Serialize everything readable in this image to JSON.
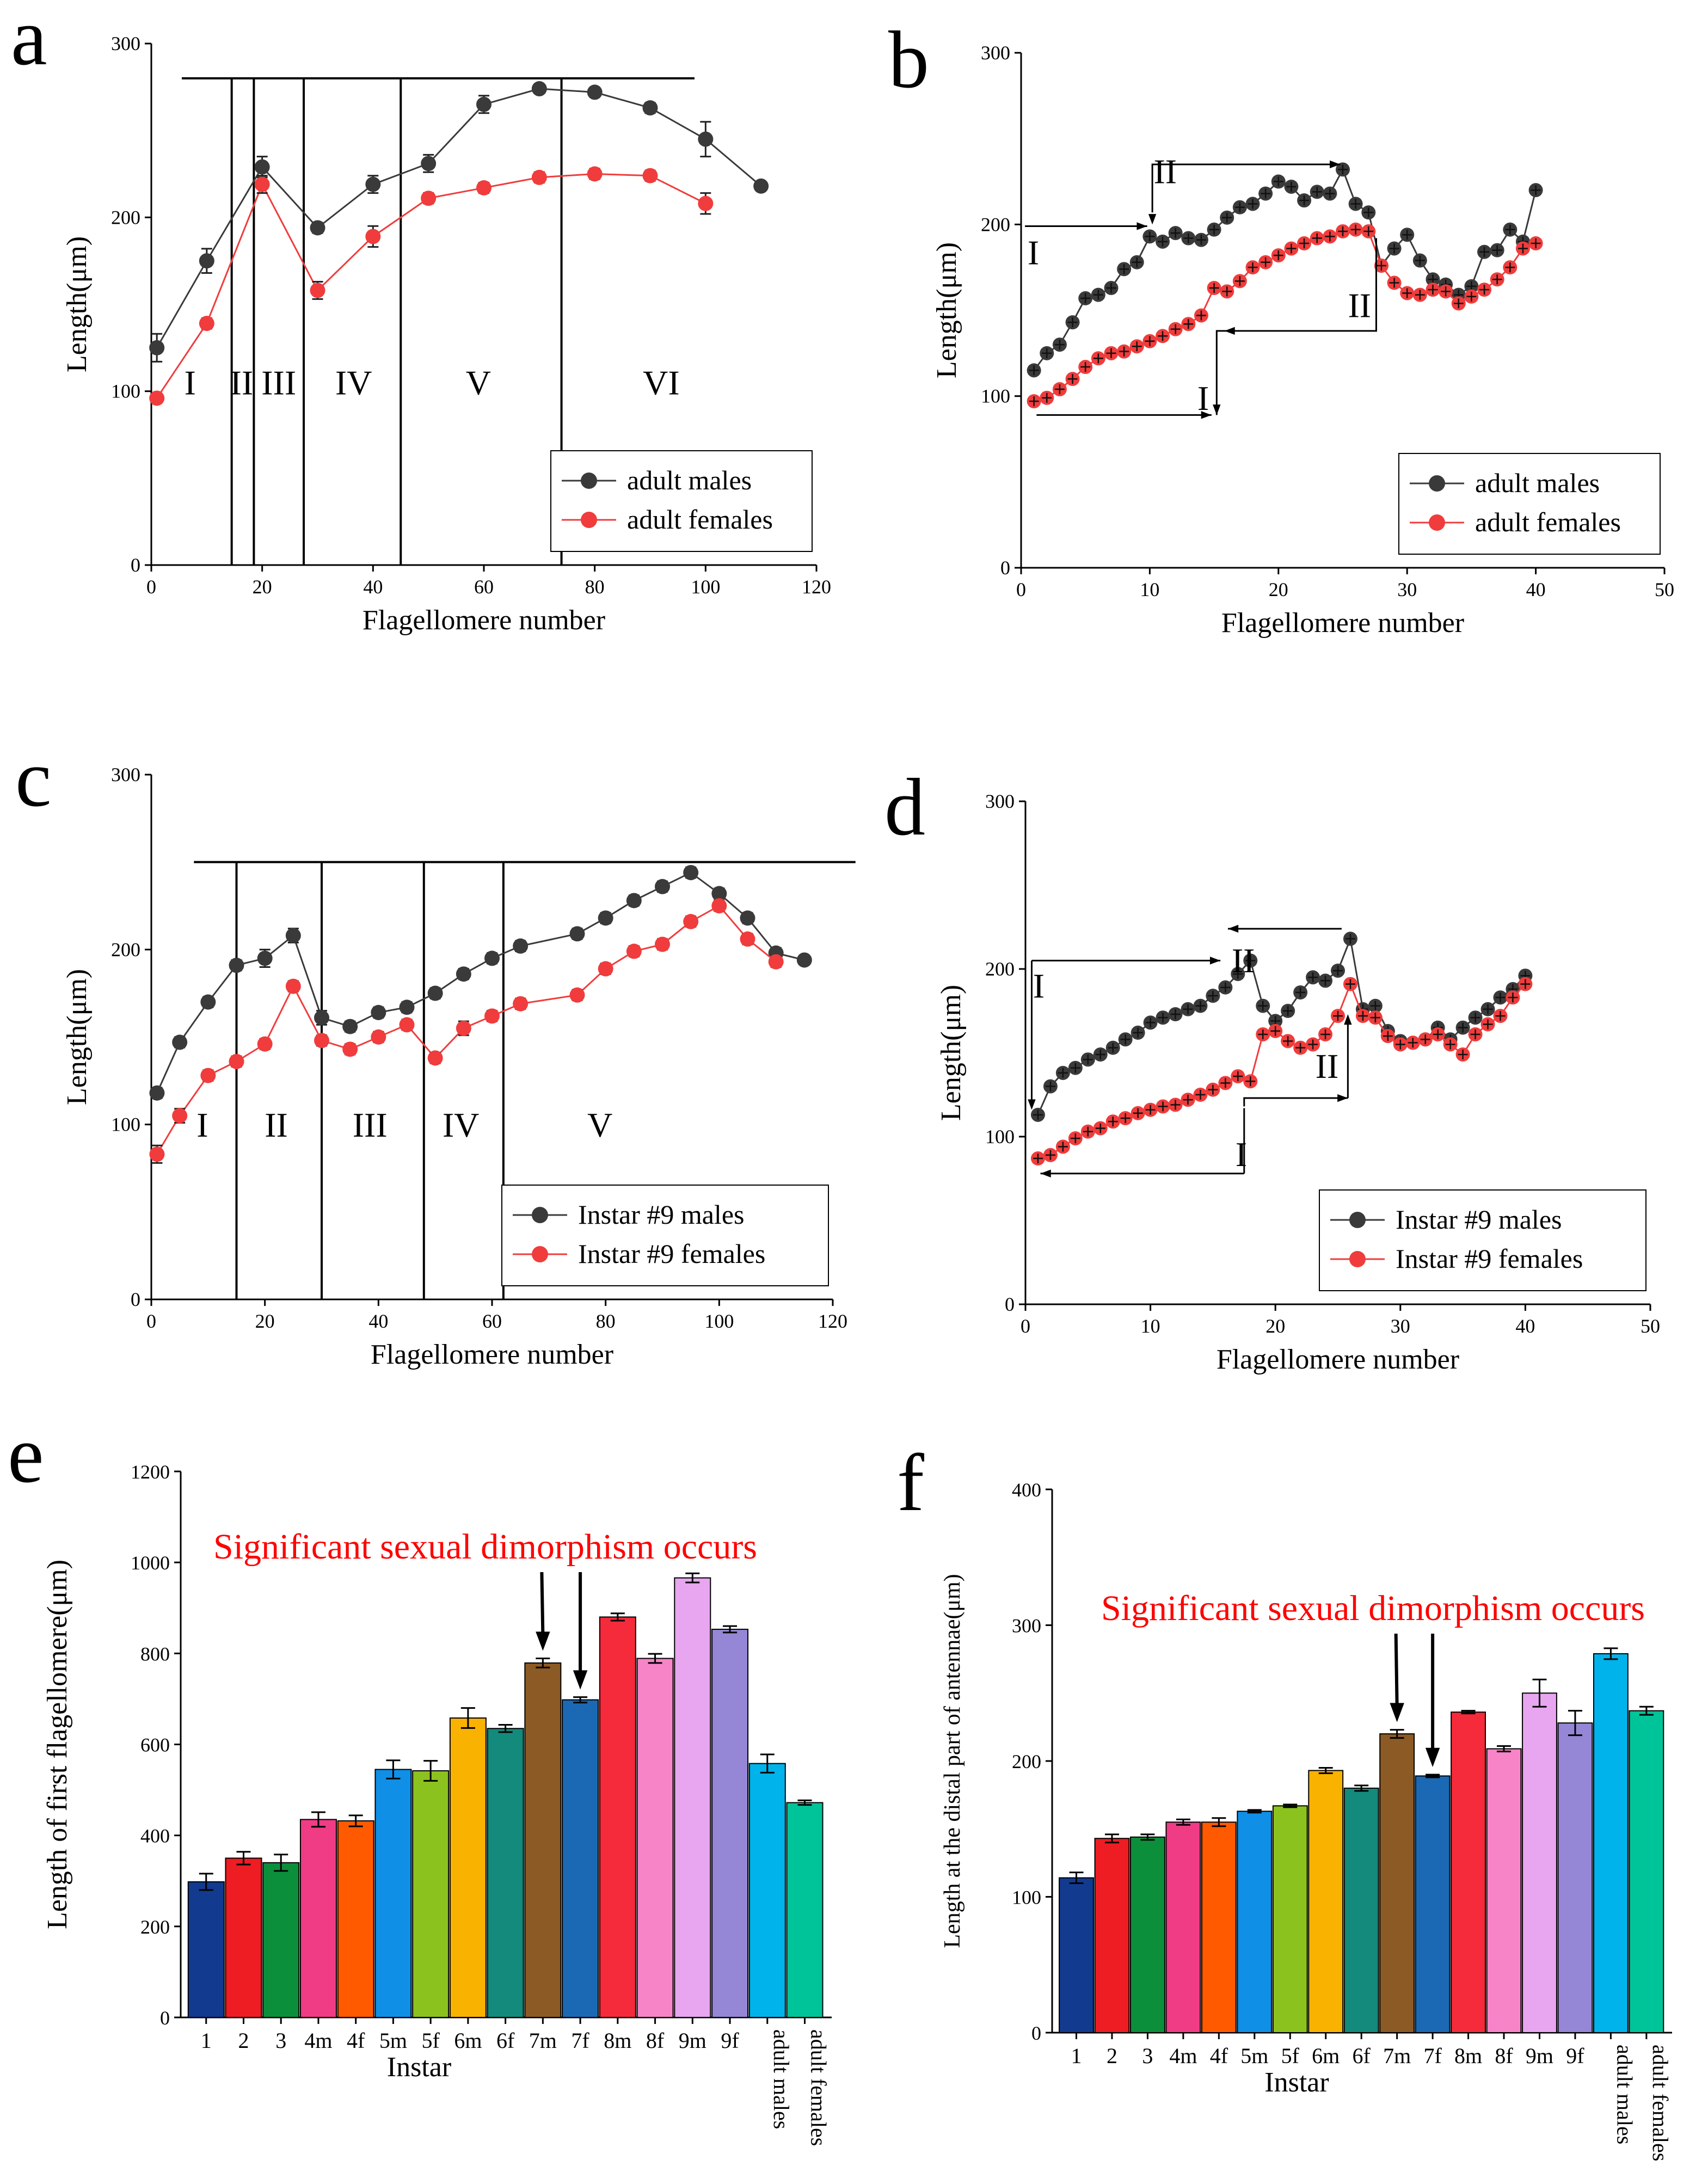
{
  "colors": {
    "male": "#3a3a3a",
    "female": "#f03c3c",
    "annotation": "#ff0000"
  },
  "chart_data": [
    {
      "panel": "a",
      "type": "line",
      "xlabel": "Flagellomere number",
      "ylabel": "Length(μm)",
      "xlim": [
        0,
        120
      ],
      "ylim": [
        0,
        300
      ],
      "xticks": [
        0,
        20,
        40,
        60,
        80,
        100,
        120
      ],
      "yticks": [
        0,
        100,
        200,
        300
      ],
      "legend": "bottom-right",
      "series": [
        {
          "name": "adult males",
          "color": "#3a3a3a",
          "x": [
            1,
            10,
            20,
            30,
            40,
            50,
            60,
            70,
            80,
            90,
            100,
            110
          ],
          "values": [
            125,
            175,
            229,
            194,
            219,
            231,
            265,
            274,
            272,
            263,
            245,
            218
          ],
          "errors": [
            8,
            7,
            6,
            3,
            5,
            5,
            5,
            2,
            2,
            3,
            10,
            2
          ]
        },
        {
          "name": "adult females",
          "color": "#f03c3c",
          "x": [
            1,
            10,
            20,
            30,
            40,
            50,
            60,
            70,
            80,
            90,
            100
          ],
          "values": [
            96,
            139,
            219,
            158,
            189,
            211,
            217,
            223,
            225,
            224,
            208
          ],
          "errors": [
            2,
            3,
            5,
            5,
            6,
            3,
            3,
            3,
            3,
            3,
            6
          ]
        }
      ],
      "bracket_y": 280,
      "dividers_x": [
        14.5,
        18.5,
        27.5,
        45,
        74
      ],
      "regions": [
        {
          "label": "I",
          "x": 7,
          "y": 95
        },
        {
          "label": "II",
          "x": 16.3,
          "y": 95
        },
        {
          "label": "III",
          "x": 23,
          "y": 95
        },
        {
          "label": "IV",
          "x": 36.5,
          "y": 95
        },
        {
          "label": "V",
          "x": 59,
          "y": 95
        },
        {
          "label": "VI",
          "x": 92,
          "y": 95
        }
      ]
    },
    {
      "panel": "b",
      "type": "line",
      "xlabel": "Flagellomere number",
      "ylabel": "Length(μm)",
      "xlim": [
        0,
        50
      ],
      "ylim": [
        0,
        300
      ],
      "xticks": [
        0,
        10,
        20,
        30,
        40,
        50
      ],
      "yticks": [
        0,
        100,
        200,
        300
      ],
      "legend": "bottom-right",
      "series": [
        {
          "name": "adult males",
          "color": "#3a3a3a",
          "x": [
            1,
            2,
            3,
            4,
            5,
            6,
            7,
            8,
            9,
            10,
            11,
            12,
            13,
            14,
            15,
            16,
            17,
            18,
            19,
            20,
            21,
            22,
            23,
            24,
            25,
            26,
            27,
            28,
            29,
            30,
            31,
            32,
            33,
            34,
            35,
            36,
            37,
            38,
            39,
            40
          ],
          "values": [
            115,
            125,
            130,
            143,
            157,
            159,
            163,
            174,
            178,
            193,
            190,
            195,
            192,
            191,
            197,
            204,
            210,
            212,
            218,
            225,
            222,
            214,
            219,
            218,
            232,
            212,
            207,
            176,
            186,
            194,
            179,
            168,
            165,
            159,
            164,
            184,
            185,
            197,
            190,
            220
          ]
        },
        {
          "name": "adult females",
          "color": "#f03c3c",
          "x": [
            1,
            2,
            3,
            4,
            5,
            6,
            7,
            8,
            9,
            10,
            11,
            12,
            13,
            14,
            15,
            16,
            17,
            18,
            19,
            20,
            21,
            22,
            23,
            24,
            25,
            26,
            27,
            28,
            29,
            30,
            31,
            32,
            33,
            34,
            35,
            36,
            37,
            38,
            39,
            40
          ],
          "values": [
            97,
            99,
            104,
            110,
            117,
            122,
            125,
            126,
            129,
            132,
            135,
            139,
            142,
            147,
            163,
            161,
            167,
            175,
            178,
            182,
            186,
            189,
            192,
            193,
            196,
            197,
            196,
            176,
            166,
            160,
            159,
            162,
            161,
            154,
            158,
            162,
            168,
            175,
            186,
            189
          ]
        }
      ],
      "annotations": {
        "male_roman": [
          "I",
          "II"
        ],
        "female_roman": [
          "I",
          "II"
        ]
      }
    },
    {
      "panel": "c",
      "type": "line",
      "xlabel": "Flagellomere number",
      "ylabel": "Length(μm)",
      "xlim": [
        0,
        120
      ],
      "ylim": [
        0,
        300
      ],
      "xticks": [
        0,
        20,
        40,
        60,
        80,
        100,
        120
      ],
      "yticks": [
        0,
        100,
        200,
        300
      ],
      "legend": "bottom-right",
      "series": [
        {
          "name": "Instar #9 males",
          "color": "#3a3a3a",
          "x": [
            1,
            5,
            10,
            15,
            20,
            25,
            30,
            35,
            40,
            45,
            50,
            55,
            60,
            65,
            75,
            80,
            85,
            90,
            95,
            100,
            105,
            110,
            115
          ],
          "values": [
            118,
            147,
            170,
            191,
            195,
            208,
            161,
            156,
            164,
            167,
            175,
            186,
            195,
            202,
            209,
            218,
            228,
            236,
            244,
            232,
            218,
            198,
            194
          ],
          "errors": [
            3,
            3,
            3,
            3,
            5,
            4,
            4,
            3,
            3,
            3,
            3,
            3,
            3,
            3,
            3,
            3,
            3,
            3,
            3,
            3,
            3,
            3,
            2
          ]
        },
        {
          "name": "Instar #9 females",
          "color": "#f03c3c",
          "x": [
            1,
            5,
            10,
            15,
            20,
            25,
            30,
            35,
            40,
            45,
            50,
            55,
            60,
            65,
            75,
            80,
            85,
            90,
            95,
            100,
            105,
            110
          ],
          "values": [
            83,
            105,
            128,
            136,
            146,
            179,
            148,
            143,
            150,
            157,
            138,
            155,
            162,
            169,
            174,
            189,
            199,
            203,
            216,
            225,
            206,
            193
          ],
          "errors": [
            5,
            4,
            3,
            3,
            3,
            3,
            3,
            3,
            3,
            3,
            3,
            4,
            3,
            3,
            3,
            3,
            3,
            3,
            3,
            3,
            3,
            3
          ]
        }
      ],
      "bracket_y": 250,
      "dividers_x": [
        15,
        30,
        48,
        62
      ],
      "regions": [
        {
          "label": "I",
          "x": 9,
          "y": 90
        },
        {
          "label": "II",
          "x": 22,
          "y": 90
        },
        {
          "label": "III",
          "x": 38.5,
          "y": 90
        },
        {
          "label": "IV",
          "x": 54.5,
          "y": 90
        },
        {
          "label": "V",
          "x": 79,
          "y": 90
        }
      ]
    },
    {
      "panel": "d",
      "type": "line",
      "xlabel": "Flagellomere number",
      "ylabel": "Length(μm)",
      "xlim": [
        0,
        50
      ],
      "ylim": [
        0,
        300
      ],
      "xticks": [
        0,
        10,
        20,
        30,
        40,
        50
      ],
      "yticks": [
        0,
        100,
        200,
        300
      ],
      "legend": "bottom-right",
      "series": [
        {
          "name": "Instar #9 males",
          "color": "#3a3a3a",
          "x": [
            1,
            2,
            3,
            4,
            5,
            6,
            7,
            8,
            9,
            10,
            11,
            12,
            13,
            14,
            15,
            16,
            17,
            18,
            19,
            20,
            21,
            22,
            23,
            24,
            25,
            26,
            27,
            28,
            29,
            30,
            31,
            32,
            33,
            34,
            35,
            36,
            37,
            38,
            39,
            40
          ],
          "values": [
            113,
            130,
            138,
            141,
            146,
            149,
            153,
            158,
            162,
            168,
            171,
            173,
            176,
            178,
            184,
            189,
            197,
            205,
            178,
            169,
            175,
            186,
            195,
            193,
            199,
            218,
            176,
            178,
            163,
            157,
            156,
            158,
            165,
            158,
            165,
            171,
            176,
            183,
            188,
            196
          ]
        },
        {
          "name": "Instar #9 females",
          "color": "#f03c3c",
          "x": [
            1,
            2,
            3,
            4,
            5,
            6,
            7,
            8,
            9,
            10,
            11,
            12,
            13,
            14,
            15,
            16,
            17,
            18,
            19,
            20,
            21,
            22,
            23,
            24,
            25,
            26,
            27,
            28,
            29,
            30,
            31,
            32,
            33,
            34,
            35,
            36,
            37,
            38,
            39,
            40
          ],
          "values": [
            87,
            89,
            94,
            99,
            103,
            105,
            109,
            111,
            114,
            116,
            118,
            119,
            122,
            125,
            128,
            132,
            136,
            133,
            161,
            163,
            157,
            153,
            155,
            161,
            172,
            191,
            172,
            171,
            160,
            155,
            156,
            158,
            161,
            155,
            149,
            161,
            167,
            172,
            183,
            191
          ]
        }
      ],
      "annotations": {
        "male_roman": [
          "I",
          "II"
        ],
        "female_roman": [
          "I",
          "II"
        ]
      }
    },
    {
      "panel": "e",
      "type": "bar",
      "xlabel": "Instar",
      "ylabel": "Length of first flagellomere(μm)",
      "ylim": [
        0,
        1200
      ],
      "yticks": [
        0,
        200,
        400,
        600,
        800,
        1000,
        1200
      ],
      "categories": [
        "1",
        "2",
        "3",
        "4m",
        "4f",
        "5m",
        "5f",
        "6m",
        "6f",
        "7m",
        "7f",
        "8m",
        "8f",
        "9m",
        "9f",
        "adult males",
        "adult females"
      ],
      "values": [
        298,
        350,
        340,
        435,
        432,
        545,
        542,
        658,
        635,
        779,
        698,
        880,
        789,
        966,
        853,
        558,
        472
      ],
      "errors": [
        18,
        14,
        18,
        16,
        12,
        20,
        22,
        22,
        8,
        10,
        6,
        8,
        10,
        10,
        7,
        20,
        5
      ],
      "bar_colors": [
        "#123a8f",
        "#ee1d23",
        "#0c8f3a",
        "#f03b85",
        "#ff5a00",
        "#0f8fe6",
        "#8cc21e",
        "#f9b200",
        "#138a7c",
        "#8c5a24",
        "#1b69b4",
        "#f52a3a",
        "#f884c8",
        "#e7a6ef",
        "#9586d6",
        "#00b3eb",
        "#00c499"
      ],
      "annotation": "Significant sexual dimorphism occurs",
      "arrow_targets": [
        9,
        10
      ]
    },
    {
      "panel": "f",
      "type": "bar",
      "xlabel": "Instar",
      "ylabel": "Length at the distal part of antennae(μm)",
      "ylim": [
        0,
        400
      ],
      "yticks": [
        0,
        100,
        200,
        300,
        400
      ],
      "categories": [
        "1",
        "2",
        "3",
        "4m",
        "4f",
        "5m",
        "5f",
        "6m",
        "6f",
        "7m",
        "7f",
        "8m",
        "8f",
        "9m",
        "9f",
        "adult males",
        "adult females"
      ],
      "values": [
        114,
        143,
        144,
        155,
        155,
        163,
        167,
        193,
        180,
        220,
        189,
        236,
        209,
        250,
        228,
        279,
        237
      ],
      "errors": [
        4,
        3,
        2,
        2,
        3,
        1,
        1,
        2,
        2,
        3,
        1,
        1,
        2,
        10,
        9,
        4,
        3
      ],
      "bar_colors": [
        "#123a8f",
        "#ee1d23",
        "#0c8f3a",
        "#f03b85",
        "#ff5a00",
        "#0f8fe6",
        "#8cc21e",
        "#f9b200",
        "#138a7c",
        "#8c5a24",
        "#1b69b4",
        "#f52a3a",
        "#f884c8",
        "#e7a6ef",
        "#9586d6",
        "#00b3eb",
        "#00c499"
      ],
      "annotation": "Significant sexual dimorphism occurs",
      "arrow_targets": [
        9,
        10
      ]
    }
  ],
  "panel_labels": [
    "a",
    "b",
    "c",
    "d",
    "e",
    "f"
  ]
}
